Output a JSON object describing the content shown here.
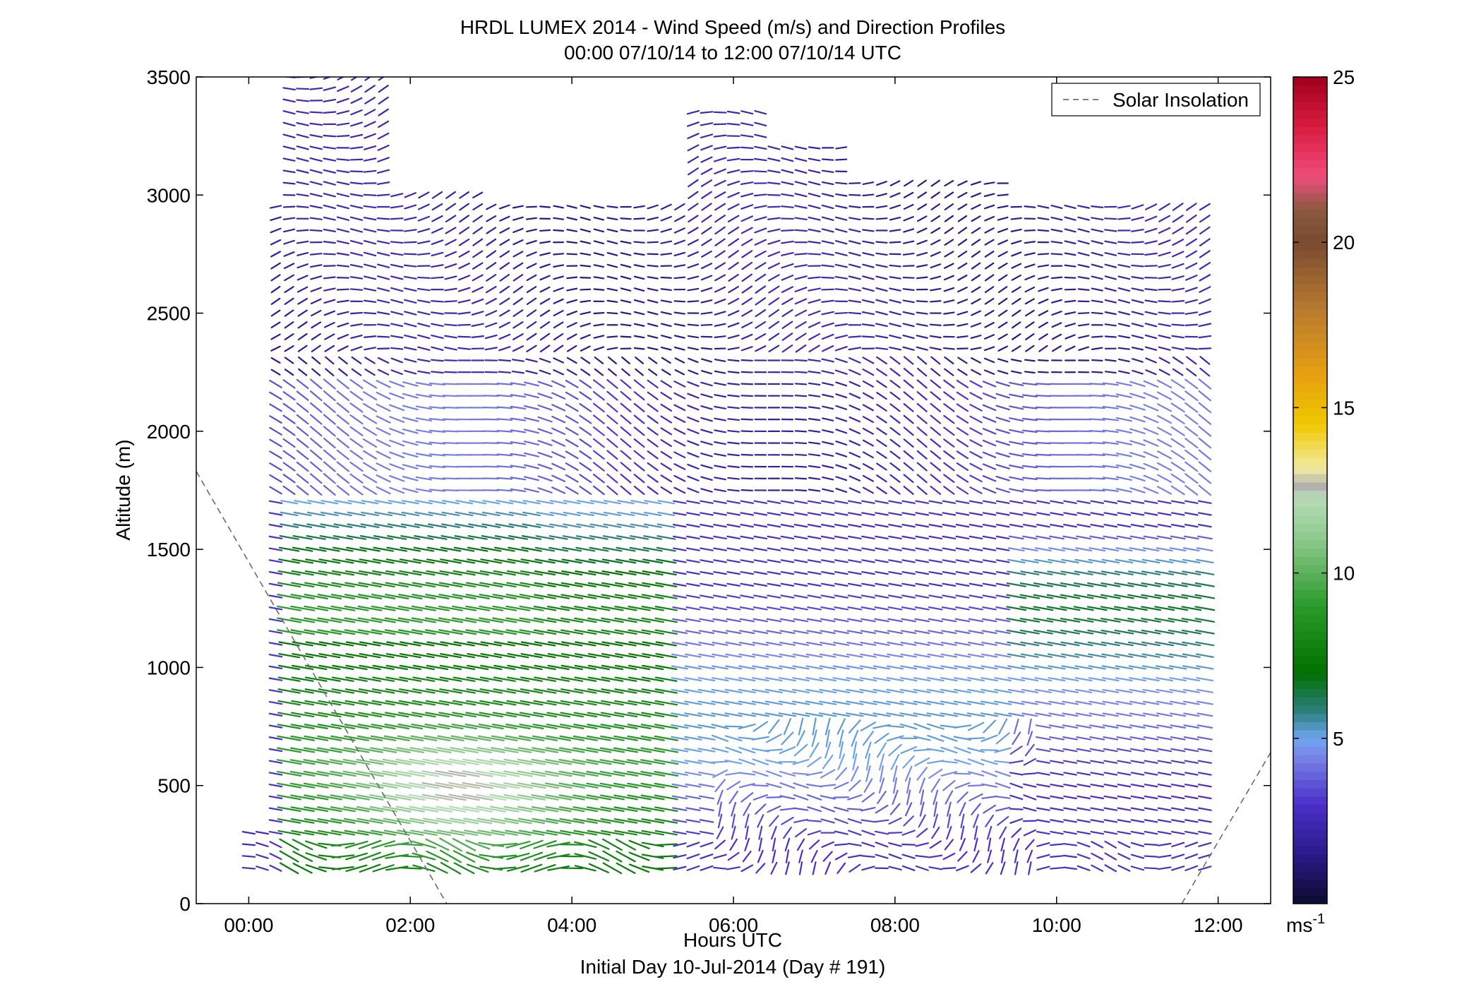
{
  "chart_data": {
    "type": "vector",
    "title": "HRDL LUMEX 2014 - Wind Speed (m/s) and Direction Profiles",
    "subtitle": "00:00 07/10/14 to 12:00 07/10/14  UTC",
    "xlabel": "Hours UTC",
    "xlabel2": "Initial Day 10-Jul-2014 (Day # 191)",
    "ylabel": "Altitude (m)",
    "xlim": [
      -0.65,
      12.65
    ],
    "ylim": [
      0,
      3500
    ],
    "x_ticks": [
      {
        "value": 0,
        "label": "00:00"
      },
      {
        "value": 2,
        "label": "02:00"
      },
      {
        "value": 4,
        "label": "04:00"
      },
      {
        "value": 6,
        "label": "06:00"
      },
      {
        "value": 8,
        "label": "08:00"
      },
      {
        "value": 10,
        "label": "10:00"
      },
      {
        "value": 12,
        "label": "12:00"
      }
    ],
    "y_ticks": [
      {
        "value": 0,
        "label": "0"
      },
      {
        "value": 500,
        "label": "500"
      },
      {
        "value": 1000,
        "label": "1000"
      },
      {
        "value": 1500,
        "label": "1500"
      },
      {
        "value": 2000,
        "label": "2000"
      },
      {
        "value": 2500,
        "label": "2500"
      },
      {
        "value": 3000,
        "label": "3000"
      },
      {
        "value": 3500,
        "label": "3500"
      }
    ],
    "legend": {
      "position": "top-right",
      "entries": [
        {
          "name": "Solar Insolation",
          "style": "dashed",
          "color": "#7f7f7f"
        }
      ]
    },
    "solar_insolation": {
      "segments": [
        [
          [
            -0.65,
            1830
          ],
          [
            2.45,
            0
          ]
        ],
        [
          [
            11.55,
            0
          ],
          [
            12.65,
            640
          ]
        ]
      ]
    },
    "colorbar": {
      "range": [
        0,
        25
      ],
      "ticks": [
        {
          "value": 5,
          "label": "5"
        },
        {
          "value": 10,
          "label": "10"
        },
        {
          "value": 15,
          "label": "15"
        },
        {
          "value": 20,
          "label": "20"
        },
        {
          "value": 25,
          "label": "25"
        }
      ],
      "unit_label": "ms",
      "unit_exp": "-1",
      "stops": [
        {
          "v": 0,
          "color": "#0b0b2e"
        },
        {
          "v": 1.5,
          "color": "#2a1a8a"
        },
        {
          "v": 3,
          "color": "#4a2fc8"
        },
        {
          "v": 4.5,
          "color": "#7a86e8"
        },
        {
          "v": 5,
          "color": "#6fa6f0"
        },
        {
          "v": 5.8,
          "color": "#2f7f7f"
        },
        {
          "v": 7,
          "color": "#007000"
        },
        {
          "v": 9,
          "color": "#2a9a2a"
        },
        {
          "v": 11,
          "color": "#8cc88c"
        },
        {
          "v": 12.3,
          "color": "#b8dcb8"
        },
        {
          "v": 12.6,
          "color": "#b0b0b0"
        },
        {
          "v": 13.2,
          "color": "#f2eaa0"
        },
        {
          "v": 14.5,
          "color": "#f0c800"
        },
        {
          "v": 16,
          "color": "#e6a010"
        },
        {
          "v": 18,
          "color": "#b87a30"
        },
        {
          "v": 20,
          "color": "#7a4a30"
        },
        {
          "v": 21,
          "color": "#8a5a40"
        },
        {
          "v": 22,
          "color": "#f04c7c"
        },
        {
          "v": 23.5,
          "color": "#d81c40"
        },
        {
          "v": 25,
          "color": "#a0001c"
        }
      ]
    },
    "wind_field": {
      "profile_interval_hours": 0.1667,
      "first_profile_hour": 0.0,
      "last_profile_hour": 12.0,
      "altitude_step_m": 50,
      "min_altitude_m": 150,
      "max_altitude_m": 3500,
      "note_direction_deg": [
        {
          "hour": 0.5,
          "alt": 500,
          "dir": 95,
          "speed": 8
        },
        {
          "hour": 2.0,
          "alt": 500,
          "dir": 100,
          "speed": 13
        },
        {
          "hour": 4.0,
          "alt": 1000,
          "dir": 100,
          "speed": 9
        },
        {
          "hour": 6.0,
          "alt": 500,
          "dir": 30,
          "speed": 5
        },
        {
          "hour": 8.0,
          "alt": 1500,
          "dir": 105,
          "speed": 4
        },
        {
          "hour": 10.0,
          "alt": 1500,
          "dir": 100,
          "speed": 8
        },
        {
          "hour": 11.0,
          "alt": 2600,
          "dir": 90,
          "speed": 3
        }
      ]
    }
  }
}
